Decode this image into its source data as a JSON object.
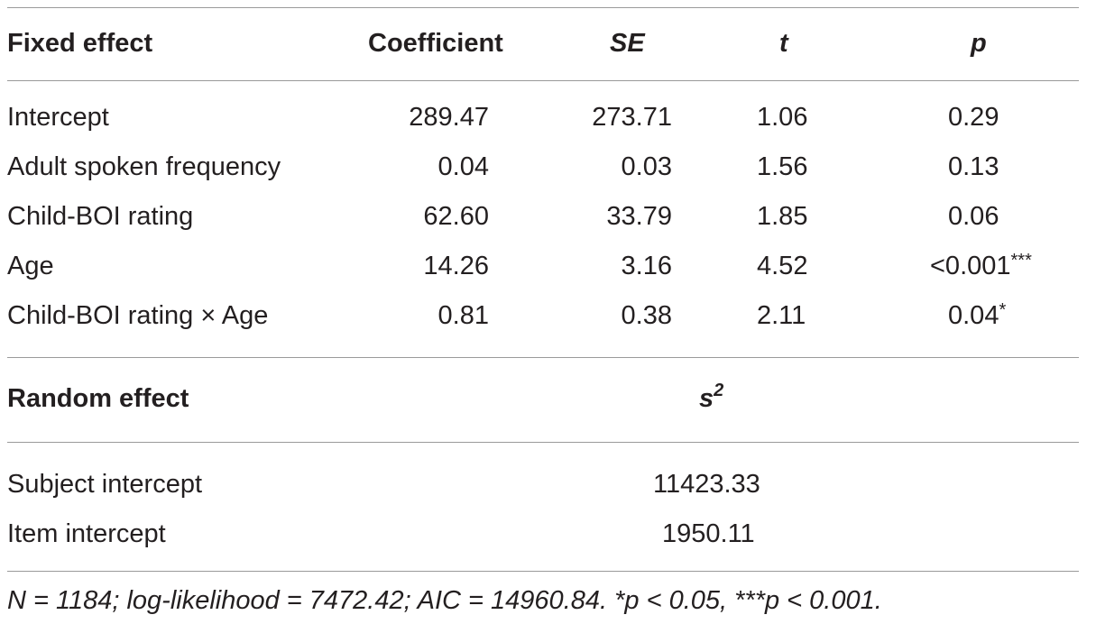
{
  "table": {
    "fixed_header": {
      "label": "Fixed effect",
      "coefficient": "Coefficient",
      "se": "SE",
      "t": "t",
      "p": "p"
    },
    "fixed_rows": [
      {
        "label": "Intercept",
        "coefficient": "289.47",
        "se": "273.71",
        "t": "1.06",
        "p": "0.29",
        "stars": ""
      },
      {
        "label": "Adult spoken frequency",
        "coefficient": "0.04",
        "se": "0.03",
        "t": "1.56",
        "p": "0.13",
        "stars": ""
      },
      {
        "label": "Child-BOI rating",
        "coefficient": "62.60",
        "se": "33.79",
        "t": "1.85",
        "p": "0.06",
        "stars": ""
      },
      {
        "label": "Age",
        "coefficient": "14.26",
        "se": "3.16",
        "t": "4.52",
        "p": "<0.001",
        "stars": "***"
      },
      {
        "label": "Child-BOI rating × Age",
        "coefficient": "0.81",
        "se": "0.38",
        "t": "2.11",
        "p": "0.04",
        "stars": "*"
      }
    ],
    "random_header": {
      "label": "Random effect",
      "s_symbol": "s",
      "s_exponent": "2"
    },
    "random_rows": [
      {
        "label": "Subject intercept",
        "value": "11423.33"
      },
      {
        "label": "Item intercept",
        "value": "1950.11"
      }
    ],
    "footnote": "N = 1184; log-likelihood = 7472.42; AIC = 14960.84. *p < 0.05, ***p < 0.001."
  }
}
